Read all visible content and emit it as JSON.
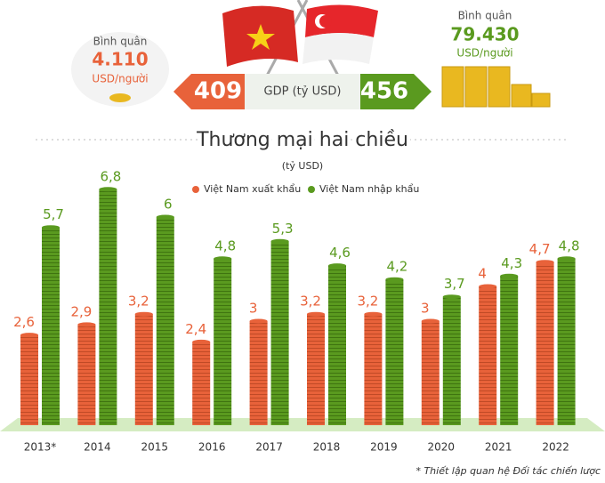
{
  "header": {
    "vn": {
      "label": "Bình quân",
      "value": "4.110",
      "unit": "USD/người"
    },
    "gdp": {
      "vn": "409",
      "label": "GDP (tỷ USD)",
      "sg": "456"
    },
    "sg": {
      "label": "Bình quân",
      "value": "79.430",
      "unit": "USD/người"
    }
  },
  "chart_data": {
    "type": "bar",
    "title": "Thương mại hai chiều",
    "subtitle": "(tỷ USD)",
    "categories": [
      "2013*",
      "2014",
      "2015",
      "2016",
      "2017",
      "2018",
      "2019",
      "2020",
      "2021",
      "2022"
    ],
    "series": [
      {
        "name": "Việt Nam xuất khẩu",
        "color": "#e8623a",
        "values": [
          2.6,
          2.9,
          3.2,
          2.4,
          3,
          3.2,
          3.2,
          3,
          4,
          4.7
        ],
        "value_labels": [
          "2,6",
          "2,9",
          "3,2",
          "2,4",
          "3",
          "3,2",
          "3,2",
          "3",
          "4",
          "4,7"
        ]
      },
      {
        "name": "Việt Nam nhập khẩu",
        "color": "#5a9a1f",
        "values": [
          5.7,
          6.8,
          6,
          4.8,
          5.3,
          4.6,
          4.2,
          3.7,
          4.3,
          4.8
        ],
        "value_labels": [
          "5,7",
          "6,8",
          "6",
          "4,8",
          "5,3",
          "4,6",
          "4,2",
          "3,7",
          "4,3",
          "4,8"
        ]
      }
    ],
    "ylim": [
      0,
      7
    ],
    "legend": "top",
    "annotations": [
      "* Thiết lập quan hệ Đối tác chiến lược"
    ]
  }
}
